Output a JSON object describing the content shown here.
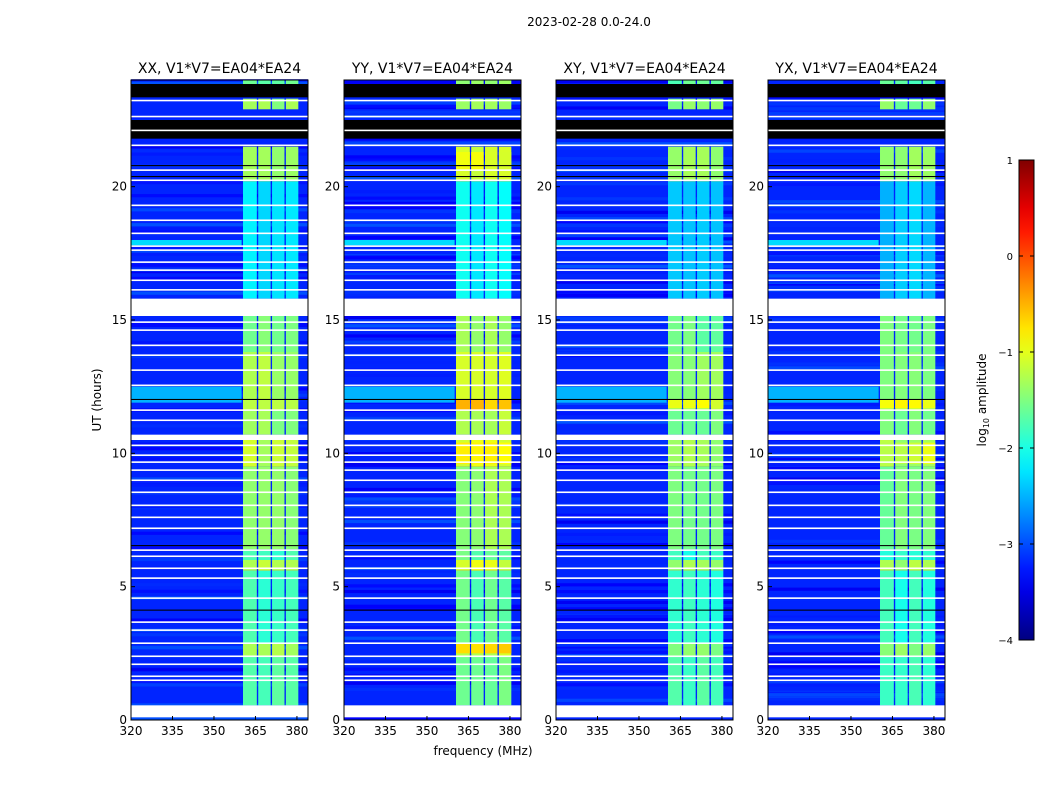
{
  "chart_data": {
    "type": "heatmap",
    "title": "2023-02-28 0.0-24.0",
    "xlabel": "frequency (MHz)",
    "ylabel": "UT (hours)",
    "xlim": [
      320,
      384
    ],
    "ylim": [
      0,
      24
    ],
    "xticks": [
      320,
      335,
      350,
      365,
      380
    ],
    "yticks": [
      0,
      5,
      10,
      15,
      20
    ],
    "panels": [
      {
        "title": "XX, V1*V7=EA04*EA24",
        "band_scale": 0.0,
        "hot": []
      },
      {
        "title": "YY, V1*V7=EA04*EA24",
        "band_scale": 0.15,
        "hot": [
          [
            11.6,
            12.0,
            -0.6
          ],
          [
            2.5,
            2.9,
            -0.7
          ],
          [
            9.6,
            10.4,
            -0.8
          ],
          [
            20.6,
            21.3,
            -1.0
          ]
        ]
      },
      {
        "title": "XY, V1*V7=EA04*EA24",
        "band_scale": -0.1,
        "hot": [
          [
            11.7,
            12.0,
            -1.0
          ]
        ]
      },
      {
        "title": "YX, V1*V7=EA04*EA24",
        "band_scale": -0.1,
        "hot": [
          [
            11.7,
            12.0,
            -0.9
          ],
          [
            9.6,
            10.4,
            -1.1
          ]
        ]
      }
    ],
    "background_level": -3.2,
    "subbands_mhz": [
      [
        360.5,
        365.5
      ],
      [
        366,
        370.5
      ],
      [
        371,
        375.5
      ],
      [
        376,
        380.5
      ]
    ],
    "band_levels": [
      [
        0.55,
        2.4,
        -1.7
      ],
      [
        2.4,
        2.9,
        -1.3
      ],
      [
        2.9,
        5.6,
        -1.8
      ],
      [
        5.6,
        6.0,
        -1.2
      ],
      [
        6.0,
        6.4,
        -1.8
      ],
      [
        6.4,
        9.5,
        -1.5
      ],
      [
        9.5,
        10.5,
        -1.2
      ],
      [
        10.7,
        11.6,
        -1.4
      ],
      [
        11.6,
        12.0,
        -1.1
      ],
      [
        12.0,
        13.8,
        -1.3
      ],
      [
        13.8,
        15.15,
        -1.5
      ],
      [
        15.8,
        20.2,
        -2.3
      ],
      [
        20.2,
        21.5,
        -1.3
      ],
      [
        22.9,
        23.3,
        -1.4
      ],
      [
        23.75,
        24,
        -1.6
      ]
    ],
    "background_stripes": [
      [
        11.9,
        12.5,
        -2.5
      ],
      [
        17.8,
        18.0,
        -2.3
      ]
    ],
    "flagged_white": [
      [
        0.1,
        0.55
      ],
      [
        10.5,
        10.7
      ],
      [
        15.15,
        15.8
      ]
    ],
    "flagged_black": [
      [
        21.8,
        22.5
      ],
      [
        23.35,
        23.85
      ]
    ],
    "thin_white_lines": [
      1.46,
      1.61,
      2.06,
      2.36,
      2.85,
      3.34,
      3.64,
      4.54,
      5.29,
      5.66,
      6.11,
      6.34,
      7.16,
      7.57,
      8.02,
      8.51,
      8.96,
      9.34,
      9.64,
      9.9,
      10.27,
      11.21,
      11.59,
      12.52,
      13.09,
      13.65,
      14.02,
      14.59,
      14.89,
      16.1,
      16.46,
      16.84,
      17.14,
      17.59,
      17.74,
      18.22,
      18.71,
      19.27,
      20.21,
      20.59,
      21.52,
      22.08,
      22.6,
      23.2
    ],
    "thin_black_lines": [
      4.1,
      6.52,
      12.0,
      20.36,
      20.77
    ],
    "colorbar": {
      "label_parts": [
        "log",
        "10",
        " amplitude"
      ],
      "range": [
        -4,
        1
      ],
      "ticks": [
        "1",
        "0",
        "−1",
        "−2",
        "−3",
        "−4"
      ],
      "tick_values": [
        1,
        0,
        -1,
        -2,
        -3,
        -4
      ]
    }
  }
}
